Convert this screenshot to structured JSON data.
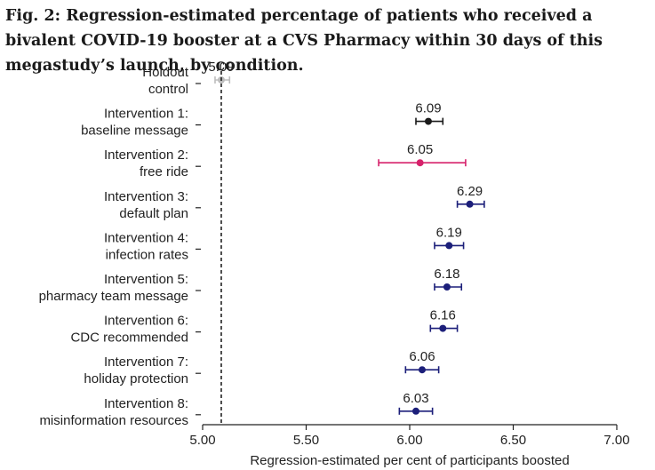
{
  "chart_data": {
    "type": "scatter",
    "title": "Fig. 2: Regression-estimated percentage of patients who received a bivalent COVID-19 booster at a CVS Pharmacy within 30 days of this megastudy’s launch, by condition.",
    "xlabel": "Regression-estimated per cent of participants boosted",
    "xlim": [
      5.0,
      7.0
    ],
    "xticks": [
      "5.00",
      "5.50",
      "6.00",
      "6.50",
      "7.00"
    ],
    "reference_line": 5.09,
    "conditions": [
      {
        "line1": "Holdout",
        "line2": "control",
        "value": 5.09,
        "value_label": "5.09",
        "ci": [
          5.06,
          5.13
        ],
        "color": "#bdbdbd"
      },
      {
        "line1": "Intervention 1:",
        "line2": "baseline message",
        "value": 6.09,
        "value_label": "6.09",
        "ci": [
          6.03,
          6.16
        ],
        "color": "#1a1a1a"
      },
      {
        "line1": "Intervention 2:",
        "line2": "free ride",
        "value": 6.05,
        "value_label": "6.05",
        "ci": [
          5.85,
          6.27
        ],
        "color": "#d6226b"
      },
      {
        "line1": "Intervention 3:",
        "line2": "default plan",
        "value": 6.29,
        "value_label": "6.29",
        "ci": [
          6.23,
          6.36
        ],
        "color": "#1c1f7a"
      },
      {
        "line1": "Intervention 4:",
        "line2": "infection rates",
        "value": 6.19,
        "value_label": "6.19",
        "ci": [
          6.12,
          6.26
        ],
        "color": "#1c1f7a"
      },
      {
        "line1": "Intervention 5:",
        "line2": "pharmacy team message",
        "value": 6.18,
        "value_label": "6.18",
        "ci": [
          6.12,
          6.25
        ],
        "color": "#1c1f7a"
      },
      {
        "line1": "Intervention 6:",
        "line2": "CDC recommended",
        "value": 6.16,
        "value_label": "6.16",
        "ci": [
          6.1,
          6.23
        ],
        "color": "#1c1f7a"
      },
      {
        "line1": "Intervention 7:",
        "line2": "holiday protection",
        "value": 6.06,
        "value_label": "6.06",
        "ci": [
          5.98,
          6.14
        ],
        "color": "#1c1f7a"
      },
      {
        "line1": "Intervention 8:",
        "line2": "misinformation resources",
        "value": 6.03,
        "value_label": "6.03",
        "ci": [
          5.95,
          6.11
        ],
        "color": "#1c1f7a"
      }
    ]
  }
}
